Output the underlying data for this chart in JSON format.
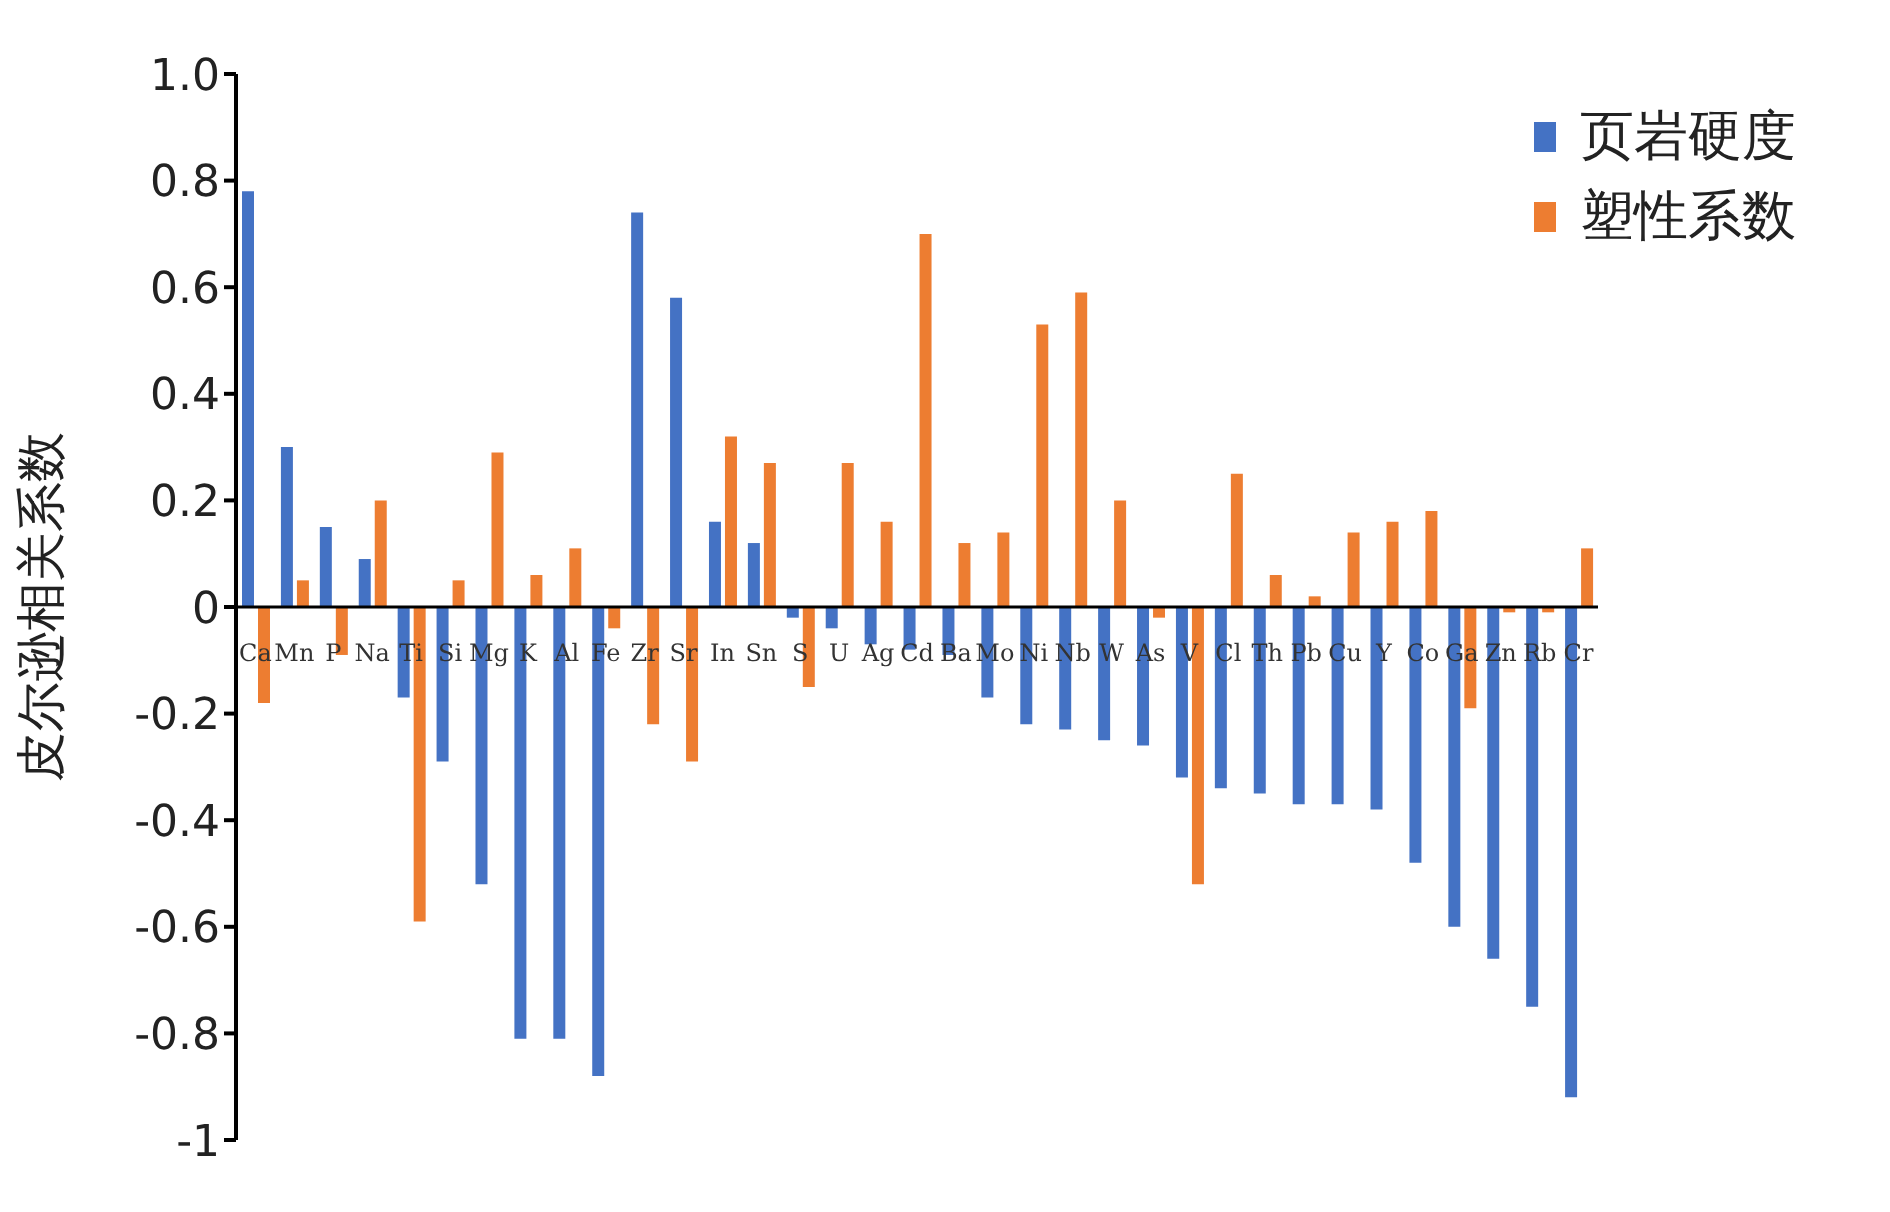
{
  "chart_data": {
    "type": "bar",
    "ylabel": "皮尔逊相关系数",
    "categories": [
      "Ca",
      "Mn",
      "P",
      "Na",
      "Ti",
      "Si",
      "Mg",
      "K",
      "Al",
      "Fe",
      "Zr",
      "Sr",
      "In",
      "Sn",
      "S",
      "U",
      "Ag",
      "Cd",
      "Ba",
      "Mo",
      "Ni",
      "Nb",
      "W",
      "As",
      "V",
      "Cl",
      "Th",
      "Pb",
      "Cu",
      "Y",
      "Co",
      "Ga",
      "Zn",
      "Rb",
      "Cr"
    ],
    "series": [
      {
        "name": "页岩硬度",
        "color": "#4472c4",
        "values": [
          0.78,
          0.3,
          0.15,
          0.09,
          -0.17,
          -0.29,
          -0.52,
          -0.81,
          -0.81,
          -0.88,
          0.74,
          0.58,
          0.16,
          0.12,
          -0.02,
          -0.04,
          -0.07,
          -0.08,
          -0.09,
          -0.17,
          -0.22,
          -0.23,
          -0.25,
          -0.26,
          -0.32,
          -0.34,
          -0.35,
          -0.37,
          -0.37,
          -0.38,
          -0.48,
          -0.6,
          -0.66,
          -0.75,
          -0.92
        ]
      },
      {
        "name": "塑性系数",
        "color": "#ed7d31",
        "values": [
          -0.18,
          0.05,
          -0.09,
          0.2,
          -0.59,
          0.05,
          0.29,
          0.06,
          0.11,
          -0.04,
          -0.22,
          -0.29,
          0.32,
          0.27,
          -0.15,
          0.27,
          0.16,
          0.7,
          0.12,
          0.14,
          0.53,
          0.59,
          0.2,
          -0.02,
          -0.52,
          0.25,
          0.06,
          0.02,
          0.14,
          0.16,
          0.18,
          -0.19,
          -0.01,
          -0.01,
          0.11
        ]
      }
    ],
    "ylim": [
      -1,
      1
    ],
    "yticks": [
      {
        "value": 1,
        "label": "1.0"
      },
      0.8,
      0.6,
      0.4,
      0.2,
      0,
      -0.2,
      -0.4,
      -0.6,
      -0.8,
      -1
    ],
    "grid": false,
    "legend": "top right"
  }
}
